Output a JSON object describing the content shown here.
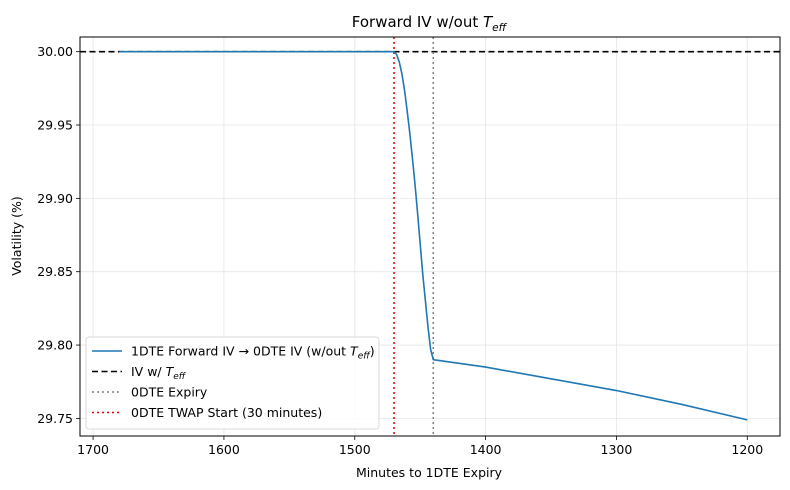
{
  "chart_data": {
    "type": "line",
    "title": "Forward IV w/out",
    "title_math": {
      "base": "T",
      "sub": "eff"
    },
    "xlabel": "Minutes to 1DTE Expiry",
    "ylabel": "Volatility (%)",
    "xlim": [
      1710,
      1175
    ],
    "ylim": [
      29.738,
      30.01
    ],
    "x_inverted": true,
    "grid": true,
    "legend_position": "lower-left",
    "xticks": [
      1700,
      1600,
      1500,
      1400,
      1300,
      1200
    ],
    "xtick_labels": [
      "1700",
      "1600",
      "1500",
      "1400",
      "1300",
      "1200"
    ],
    "yticks": [
      29.75,
      29.8,
      29.85,
      29.9,
      29.95,
      30.0
    ],
    "ytick_labels": [
      "29.75",
      "29.80",
      "29.85",
      "29.90",
      "29.95",
      "30.00"
    ],
    "series": [
      {
        "name": "1DTE Forward IV → 0DTE IV (w/out ",
        "name_math": {
          "base": "T",
          "sub": "eff"
        },
        "name_suffix": ")",
        "color": "#1f77b4",
        "style": "solid",
        "x": [
          1680,
          1600,
          1500,
          1470,
          1468,
          1466,
          1464,
          1462,
          1460,
          1458,
          1456,
          1454,
          1452,
          1450,
          1448,
          1446,
          1444,
          1442,
          1440,
          1400,
          1350,
          1300,
          1250,
          1200
        ],
        "y": [
          30.0,
          30.0,
          30.0,
          30.0,
          29.998,
          29.993,
          29.985,
          29.974,
          29.96,
          29.945,
          29.928,
          29.91,
          29.89,
          29.869,
          29.848,
          29.83,
          29.812,
          29.797,
          29.79,
          29.785,
          29.777,
          29.769,
          29.7595,
          29.749
        ]
      }
    ],
    "reference_lines": [
      {
        "orientation": "horizontal",
        "value": 30.0,
        "name": "IV w/ ",
        "name_math": {
          "base": "T",
          "sub": "eff"
        },
        "color": "#000000",
        "style": "dashed"
      },
      {
        "orientation": "vertical",
        "value": 1440,
        "name": "0DTE Expiry",
        "color": "#808080",
        "style": "dotted"
      },
      {
        "orientation": "vertical",
        "value": 1470,
        "name": "0DTE TWAP Start (30 minutes)",
        "color": "#e00000",
        "style": "dotted"
      }
    ]
  }
}
